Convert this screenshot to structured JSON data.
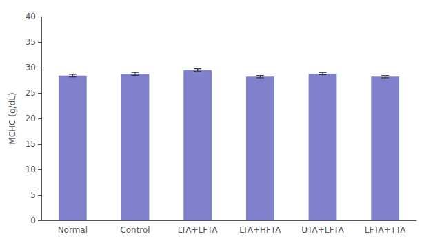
{
  "chart_data": {
    "type": "bar",
    "categories": [
      "Normal",
      "Control",
      "LTA+LFTA",
      "LTA+HFTA",
      "UTA+LFTA",
      "LFTA+TTA"
    ],
    "values": [
      28.4,
      28.75,
      29.5,
      28.2,
      28.8,
      28.2
    ],
    "errors": [
      0.25,
      0.28,
      0.28,
      0.22,
      0.22,
      0.22
    ],
    "color": "#8080cc",
    "ylabel": "MCHC (g/dL)",
    "ylim": [
      0,
      40
    ],
    "yticks": [
      0,
      5,
      10,
      15,
      20,
      25,
      30,
      35,
      40
    ],
    "grid": false
  }
}
